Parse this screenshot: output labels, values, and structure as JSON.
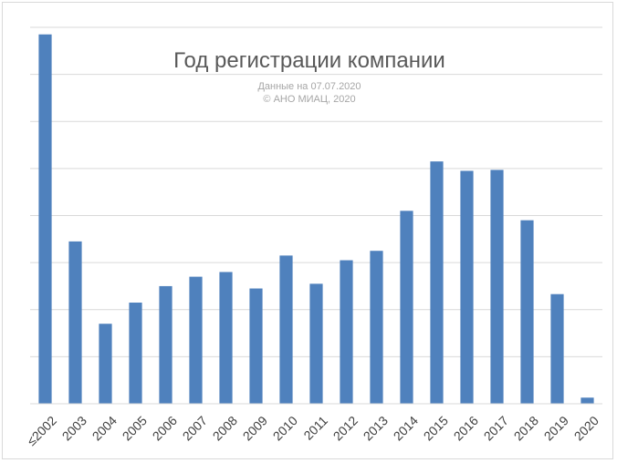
{
  "chart_data": {
    "type": "bar",
    "title": "Год регистрации компании",
    "subtitle_lines": [
      "Данные на 07.07.2020",
      "© АНО МИАЦ, 2020"
    ],
    "categories": [
      "≤2002",
      "2003",
      "2004",
      "2005",
      "2006",
      "2007",
      "2008",
      "2009",
      "2010",
      "2011",
      "2012",
      "2013",
      "2014",
      "2015",
      "2016",
      "2017",
      "2018",
      "2019",
      "2020"
    ],
    "values": [
      7.85,
      3.45,
      1.7,
      2.15,
      2.5,
      2.7,
      2.8,
      2.45,
      3.15,
      2.55,
      3.05,
      3.25,
      4.1,
      5.15,
      4.95,
      4.97,
      3.9,
      2.33,
      0.13
    ],
    "ylim": [
      0,
      8
    ],
    "y_gridlines": 8,
    "y_tick_labels_shown": false,
    "bar_color": "#4f81bd",
    "grid": true,
    "legend": "none"
  }
}
